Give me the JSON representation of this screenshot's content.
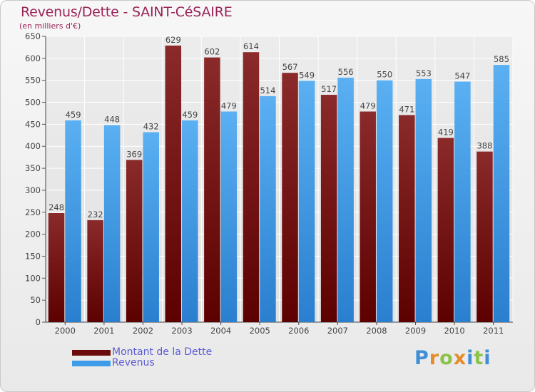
{
  "header": {
    "title": "Revenus/Dette - SAINT-CéSAIRE",
    "subtitle": "(en milliers d'€)"
  },
  "legend": {
    "items": [
      {
        "label": "Montant de la Dette",
        "color": "#6b0a0a"
      },
      {
        "label": "Revenus",
        "color": "#3d9be8"
      }
    ]
  },
  "logo": {
    "letters": [
      "P",
      "r",
      "o",
      "x",
      "i",
      "t",
      "i"
    ],
    "colors": [
      "#3f8fd6",
      "#e58b2a",
      "#8bc34a",
      "#e58b2a",
      "#3f8fd6",
      "#8bc34a",
      "#3f8fd6"
    ]
  },
  "chart_data": {
    "type": "bar",
    "categories": [
      "2000",
      "2001",
      "2002",
      "2003",
      "2004",
      "2005",
      "2006",
      "2007",
      "2008",
      "2009",
      "2010",
      "2011"
    ],
    "series": [
      {
        "name": "Montant de la Dette",
        "color": "#7a1414",
        "values": [
          248,
          232,
          369,
          629,
          602,
          614,
          567,
          517,
          479,
          471,
          419,
          388
        ]
      },
      {
        "name": "Revenus",
        "color": "#4aa3ec",
        "values": [
          459,
          448,
          432,
          459,
          479,
          514,
          549,
          556,
          550,
          553,
          547,
          585
        ]
      }
    ],
    "yticks": [
      "0",
      "50",
      "100",
      "150",
      "200",
      "250",
      "300",
      "350",
      "400",
      "450",
      "500",
      "550",
      "600",
      "650"
    ],
    "ylim": [
      0,
      650
    ],
    "grid": true,
    "legend_position": "bottom-left"
  }
}
